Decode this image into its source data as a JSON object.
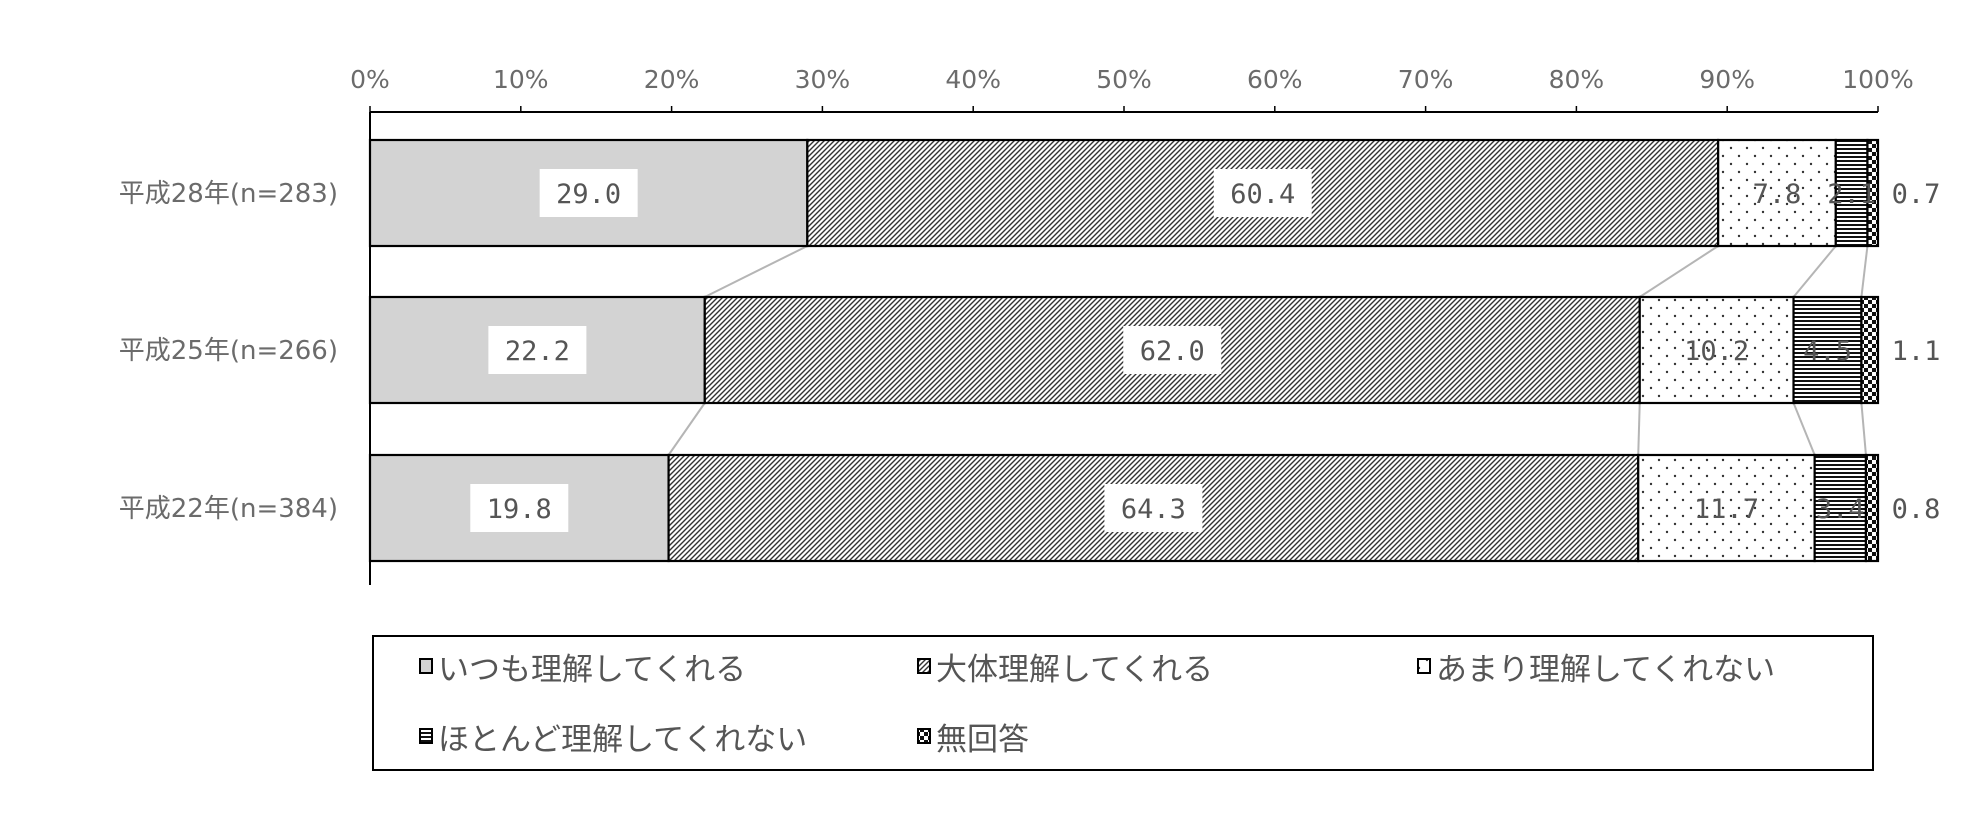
{
  "chart_data": {
    "type": "bar",
    "orientation": "horizontal",
    "stacked": "percent",
    "categories": [
      "平成28年(n=283)",
      "平成25年(n=266)",
      "平成22年(n=384)"
    ],
    "series": [
      {
        "name": "いつも理解してくれる",
        "values": [
          29.0,
          22.2,
          19.8
        ],
        "labels": [
          "29.0",
          "22.2",
          "19.8"
        ],
        "fill": "#d3d3d3",
        "pattern": "solid"
      },
      {
        "name": "大体理解してくれる",
        "values": [
          60.4,
          62.0,
          64.3
        ],
        "labels": [
          "60.4",
          "62.0",
          "64.3"
        ],
        "fill": "#ffffff",
        "pattern": "diagonal-hatch"
      },
      {
        "name": "あまり理解してくれない",
        "values": [
          7.8,
          10.2,
          11.7
        ],
        "labels": [
          "7.8",
          "10.2",
          "11.7"
        ],
        "fill": "#ffffff",
        "pattern": "dots"
      },
      {
        "name": "ほとんど理解してくれない",
        "values": [
          2.1,
          4.5,
          3.4
        ],
        "labels": [
          "2.1",
          "4.5",
          "3.4"
        ],
        "fill": "#ffffff",
        "pattern": "horizontal-lines"
      },
      {
        "name": "無回答",
        "values": [
          0.7,
          1.1,
          0.8
        ],
        "labels": [
          "0.7",
          "1.1",
          "0.8"
        ],
        "fill": "#000000",
        "pattern": "checker"
      }
    ],
    "x_ticks": [
      "0%",
      "10%",
      "20%",
      "30%",
      "40%",
      "50%",
      "60%",
      "70%",
      "80%",
      "90%",
      "100%"
    ],
    "xlim": [
      0,
      100
    ],
    "axis_position": "top",
    "grid": false,
    "series_connector_lines": true,
    "legend_position": "bottom",
    "legend_rows": [
      [
        0,
        1,
        2
      ],
      [
        3,
        4
      ]
    ],
    "title": "",
    "xlabel": "",
    "ylabel": ""
  }
}
